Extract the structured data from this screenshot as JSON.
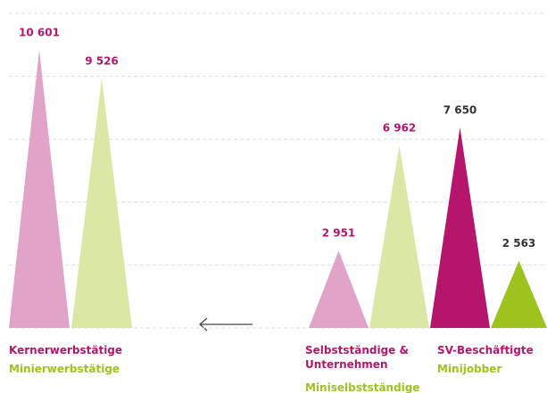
{
  "chart_data": {
    "type": "triangle-bar",
    "categories": [
      "Kernerwerbstätige",
      "Minierwerbstätige",
      "Selbstständige & Unternehmen",
      "Miniselbstständige",
      "SV-Beschäftigte",
      "Minijobber"
    ],
    "values": [
      10601,
      9526,
      2951,
      6962,
      7650,
      2563
    ],
    "value_labels": [
      "10 601",
      "9 526",
      "2 951",
      "6 962",
      "7 650",
      "2 563"
    ],
    "colors": [
      "#e2a3c8",
      "#dbe7a5",
      "#e2a3c8",
      "#dbe7a5",
      "#b5156b",
      "#9dc31e"
    ],
    "label_colors": [
      "#b5156b",
      "#9dc31e",
      "#b5156b",
      "#9dc31e",
      "#b5156b",
      "#9dc31e"
    ],
    "value_label_colors": [
      "#b5156b",
      "#b5156b",
      "#b5156b",
      "#b5156b",
      "#333333",
      "#333333"
    ],
    "ylim": [
      0,
      12000
    ],
    "yticks": [
      0,
      2400,
      4800,
      7200,
      9600,
      12000
    ],
    "grid": true
  }
}
